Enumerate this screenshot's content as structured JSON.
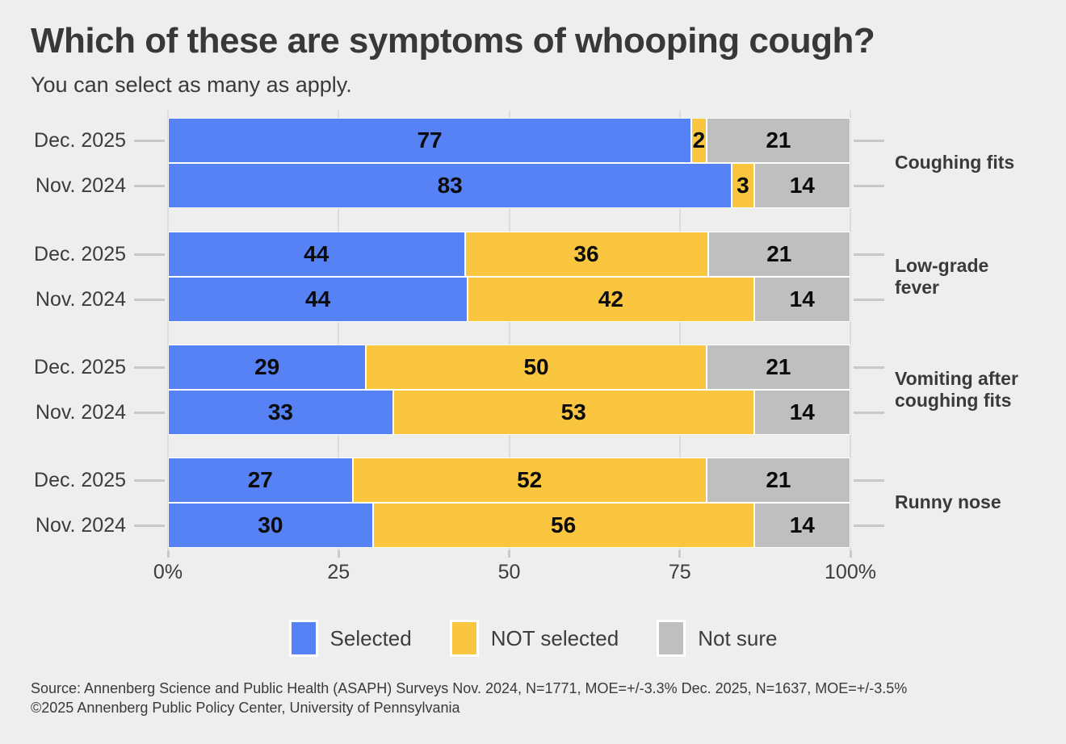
{
  "title": "Which of these are symptoms of whooping cough?",
  "subtitle": "You can select as many as apply.",
  "colors": {
    "selected": "#5782F5",
    "not_selected": "#FBC63F",
    "not_sure": "#BFBFBF",
    "page_bg": "#EFEEEE",
    "gridline": "#DCDCDC",
    "tick": "#C8C8C8",
    "title_text": "#383838",
    "axis_text": "#3C3C3C",
    "bar_value_text": "#0B0B0B"
  },
  "legend": {
    "items": [
      {
        "key": "selected",
        "label": "Selected"
      },
      {
        "key": "not_selected",
        "label": "NOT selected"
      },
      {
        "key": "not_sure",
        "label": "Not sure"
      }
    ]
  },
  "x_axis": {
    "ticks": [
      {
        "label": "0%",
        "value": 0
      },
      {
        "label": "25",
        "value": 25
      },
      {
        "label": "50",
        "value": 50
      },
      {
        "label": "75",
        "value": 75
      },
      {
        "label": "100%",
        "value": 100
      }
    ]
  },
  "chart_data": {
    "type": "bar",
    "orientation": "horizontal",
    "stacked": true,
    "xlim": [
      0,
      100
    ],
    "grid": true,
    "legend_position": "bottom",
    "series_keys": [
      "selected",
      "not_selected",
      "not_sure"
    ],
    "series_labels": [
      "Selected",
      "NOT selected",
      "Not sure"
    ],
    "groups": [
      {
        "label": "Coughing fits",
        "bars": [
          {
            "period": "Dec. 2025",
            "selected": 77,
            "not_selected": 2,
            "not_sure": 21
          },
          {
            "period": "Nov. 2024",
            "selected": 83,
            "not_selected": 3,
            "not_sure": 14
          }
        ]
      },
      {
        "label": "Low-grade fever",
        "bars": [
          {
            "period": "Dec. 2025",
            "selected": 44,
            "not_selected": 36,
            "not_sure": 21
          },
          {
            "period": "Nov. 2024",
            "selected": 44,
            "not_selected": 42,
            "not_sure": 14
          }
        ]
      },
      {
        "label": "Vomiting after coughing fits",
        "bars": [
          {
            "period": "Dec. 2025",
            "selected": 29,
            "not_selected": 50,
            "not_sure": 21
          },
          {
            "period": "Nov. 2024",
            "selected": 33,
            "not_selected": 53,
            "not_sure": 14
          }
        ]
      },
      {
        "label": "Runny nose",
        "bars": [
          {
            "period": "Dec. 2025",
            "selected": 27,
            "not_selected": 52,
            "not_sure": 21
          },
          {
            "period": "Nov. 2024",
            "selected": 30,
            "not_selected": 56,
            "not_sure": 14
          }
        ]
      }
    ]
  },
  "footer": {
    "source": "Source: Annenberg Science and Public Health (ASAPH) Surveys Nov. 2024, N=1771, MOE=+/-3.3% Dec. 2025, N=1637, MOE=+/-3.5%",
    "copyright": "©2025 Annenberg Public Policy Center, University of Pennsylvania"
  }
}
